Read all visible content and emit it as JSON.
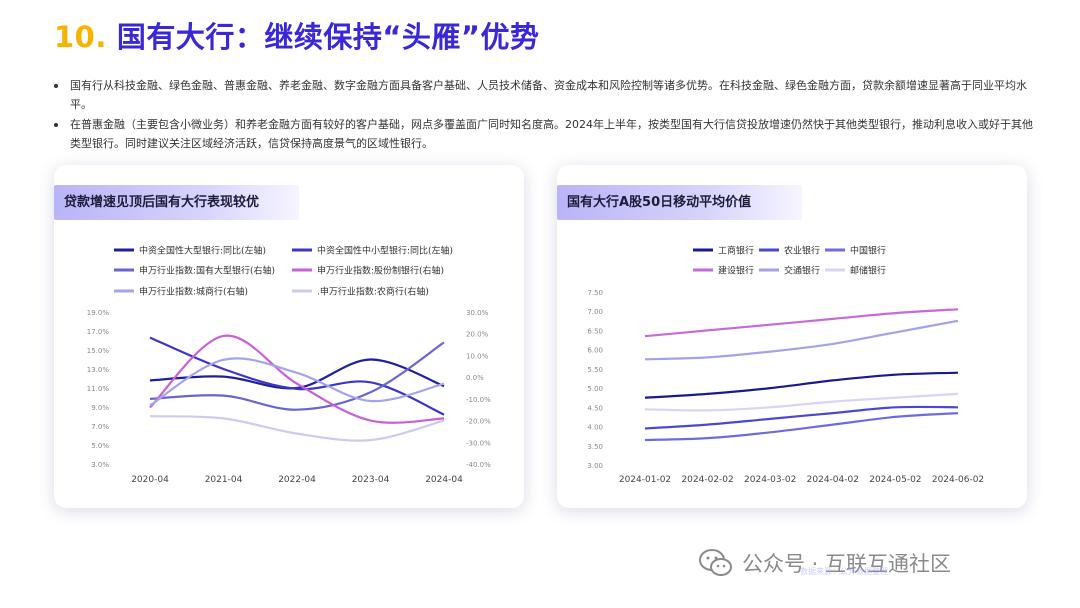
{
  "header": {
    "number": "10.",
    "title": "国有大行：继续保持“头雁”优势"
  },
  "bullets": [
    "国有行从科技金融、绿色金融、普惠金融、养老金融、数字金融方面具备客户基础、人员技术储备、资金成本和风险控制等诸多优势。在科技金融、绿色金融方面，贷款余额增速显著高于同业平均水平。",
    "在普惠金融（主要包含小微业务）和养老金融方面有较好的客户基础，网点多覆盖面广同时知名度高。2024年上半年，按类型国有大行信贷投放增速仍然快于其他类型银行，推动利息收入或好于其他类型银行。同时建议关注区域经济活跃，信贷保持高度景气的区域性银行。"
  ],
  "watermark": {
    "text": "公众号 · 互联互通社区",
    "sub": "数据来源：公开数据整理"
  },
  "colors": {
    "title_accent": "#3a27d6",
    "number_accent": "#f5b400"
  },
  "chart_data": [
    {
      "type": "line",
      "title": "贷款增速见顶后国有大行表现较优",
      "categories": [
        "2020-04",
        "2021-04",
        "2022-04",
        "2023-04",
        "2024-04"
      ],
      "left_axis": {
        "ticks": [
          "19.0%",
          "17.0%",
          "15.0%",
          "13.0%",
          "11.0%",
          "9.0%",
          "7.0%",
          "5.0%",
          "3.0%"
        ],
        "ylim": [
          3,
          19
        ]
      },
      "right_axis": {
        "ticks": [
          "30.0%",
          "20.0%",
          "10.0%",
          "0.0%",
          "-10.0%",
          "-20.0%",
          "-30.0%",
          "-40.0%"
        ],
        "ylim": [
          -40,
          30
        ]
      },
      "legend_placement": "top",
      "series": [
        {
          "name": "中资全国性大型银行:同比(左轴)",
          "axis": "left",
          "color": "#1f1f99",
          "values": [
            11.8,
            12.2,
            11.0,
            14.0,
            11.2
          ]
        },
        {
          "name": "中资全国性中小型银行:同比(左轴)",
          "axis": "left",
          "color": "#3c36c6",
          "values": [
            16.3,
            13.0,
            10.9,
            11.6,
            8.2
          ]
        },
        {
          "name": "申万行业指数:国有大型银行(右轴)",
          "axis": "right",
          "color": "#6a64cf",
          "values": [
            -10.0,
            -8.5,
            -15.0,
            -7.0,
            16.0
          ]
        },
        {
          "name": "申万行业指数:股份制银行(右轴)",
          "axis": "right",
          "color": "#c85fd8",
          "values": [
            -14.0,
            19.0,
            -3.0,
            -20.0,
            -19.0
          ]
        },
        {
          "name": "申万行业指数:城商行(右轴)",
          "axis": "right",
          "color": "#a5a3e8",
          "values": [
            -13.0,
            8.0,
            2.0,
            -11.0,
            -3.0
          ]
        },
        {
          "name": ".申万行业指数:农商行(右轴)",
          "axis": "right",
          "color": "#cfc9ee",
          "values": [
            -18.0,
            -19.0,
            -26.0,
            -29.0,
            -20.0
          ]
        }
      ]
    },
    {
      "type": "line",
      "title": "国有大行A股50日移动平均价值",
      "categories": [
        "2024-01-02",
        "2024-02-02",
        "2024-03-02",
        "2024-04-02",
        "2024-05-02",
        "2024-06-02"
      ],
      "y_axis": {
        "ticks": [
          "7.50",
          "7.00",
          "6.50",
          "6.00",
          "5.50",
          "5.00",
          "4.50",
          "4.00",
          "3.50",
          "3.00"
        ],
        "ylim": [
          3.0,
          7.5
        ]
      },
      "legend_placement": "top",
      "series": [
        {
          "name": "工商银行",
          "color": "#1a1a8c",
          "values": [
            4.75,
            4.85,
            5.0,
            5.2,
            5.35,
            5.4
          ]
        },
        {
          "name": "农业银行",
          "color": "#4b47d0",
          "values": [
            3.95,
            4.05,
            4.2,
            4.35,
            4.5,
            4.5
          ]
        },
        {
          "name": "中国银行",
          "color": "#6f6bd8",
          "values": [
            3.65,
            3.7,
            3.85,
            4.05,
            4.25,
            4.35
          ]
        },
        {
          "name": "建设银行",
          "color": "#c66ad9",
          "values": [
            6.35,
            6.5,
            6.65,
            6.8,
            6.95,
            7.05
          ]
        },
        {
          "name": "交通银行",
          "color": "#a4a2e6",
          "values": [
            5.75,
            5.8,
            5.95,
            6.15,
            6.45,
            6.75
          ]
        },
        {
          "name": "邮储银行",
          "color": "#d8d4f2",
          "values": [
            4.45,
            4.42,
            4.5,
            4.65,
            4.75,
            4.85
          ]
        }
      ]
    }
  ]
}
